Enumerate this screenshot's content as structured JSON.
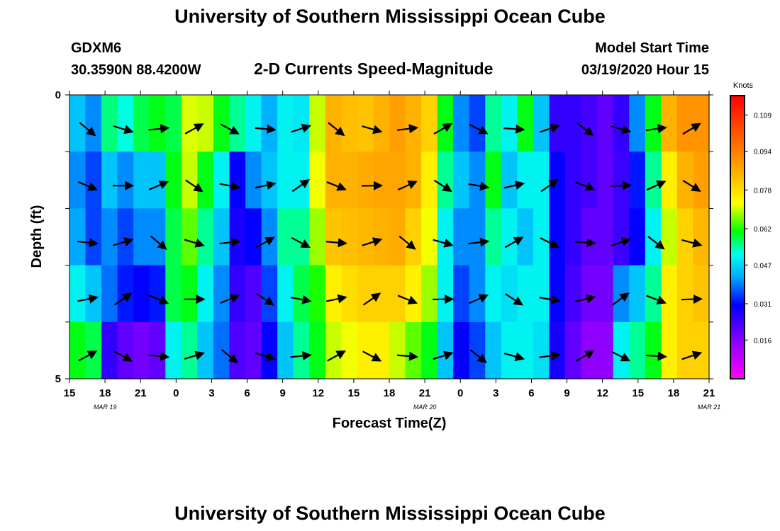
{
  "title_top": "University of Southern Mississippi Ocean Cube",
  "title_bottom": "University of Southern Mississippi Ocean Cube",
  "station": {
    "id": "GDXM6",
    "location": "30.3590N 88.4200W"
  },
  "model_start": {
    "label": "Model Start Time",
    "value": "03/19/2020 Hour 15"
  },
  "chart_data": {
    "type": "heatmap",
    "title": "2-D Currents Speed-Magnitude",
    "xlabel": "Forecast Time(Z)",
    "ylabel": "Depth (ft)",
    "x_tick_labels": [
      "15",
      "18",
      "21",
      "0",
      "3",
      "6",
      "9",
      "12",
      "15",
      "18",
      "21",
      "0",
      "3",
      "6",
      "9",
      "12",
      "15",
      "18",
      "21"
    ],
    "date_labels": [
      "MAR  19",
      "MAR  20",
      "MAR  21"
    ],
    "y_tick_labels": [
      "0",
      "5"
    ],
    "ylim": [
      0,
      5
    ],
    "colorbar": {
      "unit": "Knots",
      "range": [
        0.0,
        0.117
      ],
      "tick_labels": [
        "0.109",
        "0.094",
        "0.078",
        "0.062",
        "0.047",
        "0.031",
        "0.016"
      ],
      "tick_values": [
        0.109,
        0.094,
        0.078,
        0.062,
        0.047,
        0.031,
        0.016
      ],
      "colors": [
        "#ff00ff",
        "#9900ff",
        "#0000ff",
        "#00aaff",
        "#00ffee",
        "#00ff00",
        "#ffff00",
        "#ff9900",
        "#ff0000"
      ]
    },
    "layers": 5,
    "hours": 54,
    "speed_knots": [
      [
        0.045,
        0.04,
        0.056,
        0.052,
        0.058,
        0.06,
        0.058,
        0.071,
        0.07,
        0.06,
        0.055,
        0.05,
        0.043,
        0.05,
        0.049,
        0.07,
        0.085,
        0.083,
        0.082,
        0.085,
        0.088,
        0.085,
        0.08,
        0.06,
        0.04,
        0.035,
        0.055,
        0.05,
        0.06,
        0.045,
        0.025,
        0.025,
        0.023,
        0.02,
        0.025,
        0.04,
        0.06,
        0.085,
        0.09,
        0.09
      ],
      [
        0.04,
        0.035,
        0.045,
        0.04,
        0.045,
        0.045,
        0.06,
        0.07,
        0.06,
        0.05,
        0.03,
        0.04,
        0.045,
        0.05,
        0.05,
        0.072,
        0.085,
        0.085,
        0.086,
        0.087,
        0.087,
        0.085,
        0.075,
        0.055,
        0.045,
        0.04,
        0.06,
        0.045,
        0.05,
        0.05,
        0.03,
        0.025,
        0.023,
        0.02,
        0.024,
        0.032,
        0.055,
        0.075,
        0.085,
        0.088
      ],
      [
        0.042,
        0.035,
        0.04,
        0.035,
        0.04,
        0.04,
        0.058,
        0.065,
        0.055,
        0.045,
        0.028,
        0.03,
        0.04,
        0.055,
        0.055,
        0.068,
        0.082,
        0.083,
        0.084,
        0.085,
        0.086,
        0.08,
        0.072,
        0.05,
        0.04,
        0.04,
        0.055,
        0.05,
        0.045,
        0.05,
        0.03,
        0.025,
        0.02,
        0.02,
        0.024,
        0.03,
        0.05,
        0.07,
        0.08,
        0.084
      ],
      [
        0.05,
        0.045,
        0.038,
        0.032,
        0.03,
        0.032,
        0.058,
        0.06,
        0.05,
        0.04,
        0.025,
        0.022,
        0.035,
        0.05,
        0.058,
        0.062,
        0.075,
        0.078,
        0.08,
        0.08,
        0.08,
        0.075,
        0.068,
        0.05,
        0.035,
        0.04,
        0.05,
        0.048,
        0.05,
        0.05,
        0.03,
        0.023,
        0.018,
        0.018,
        0.04,
        0.045,
        0.055,
        0.075,
        0.08,
        0.082
      ],
      [
        0.06,
        0.058,
        0.025,
        0.02,
        0.018,
        0.02,
        0.05,
        0.055,
        0.045,
        0.038,
        0.022,
        0.02,
        0.03,
        0.045,
        0.055,
        0.06,
        0.07,
        0.072,
        0.075,
        0.075,
        0.07,
        0.065,
        0.06,
        0.045,
        0.03,
        0.035,
        0.045,
        0.05,
        0.05,
        0.048,
        0.028,
        0.02,
        0.015,
        0.015,
        0.05,
        0.055,
        0.06,
        0.075,
        0.08,
        0.08
      ]
    ]
  }
}
